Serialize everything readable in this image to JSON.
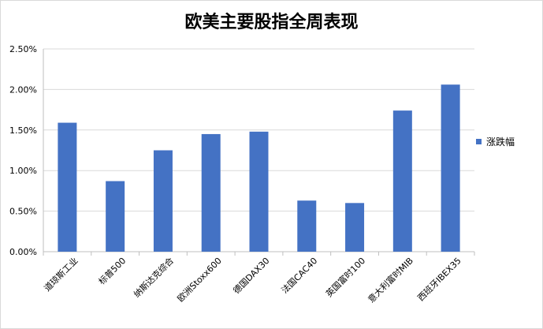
{
  "chart_data": {
    "type": "bar",
    "title": "欧美主要股指全周表现",
    "categories": [
      "道琼斯工业",
      "标普500",
      "纳斯达克综合",
      "欧洲Stoxx600",
      "德国DAX30",
      "法国CAC40",
      "英国富时100",
      "意大利富时MIB",
      "西班牙IBEX35"
    ],
    "series": [
      {
        "name": "涨跌幅",
        "values": [
          1.59,
          0.87,
          1.25,
          1.45,
          1.48,
          0.63,
          0.6,
          1.74,
          2.06
        ],
        "color": "#4472c4"
      }
    ],
    "ylim": [
      0,
      2.5
    ],
    "yticks": [
      "0.00%",
      "0.50%",
      "1.00%",
      "1.50%",
      "2.00%",
      "2.50%"
    ],
    "y_unit": "%",
    "grid": true,
    "legend_position": "right",
    "xlabel": "",
    "ylabel": ""
  }
}
